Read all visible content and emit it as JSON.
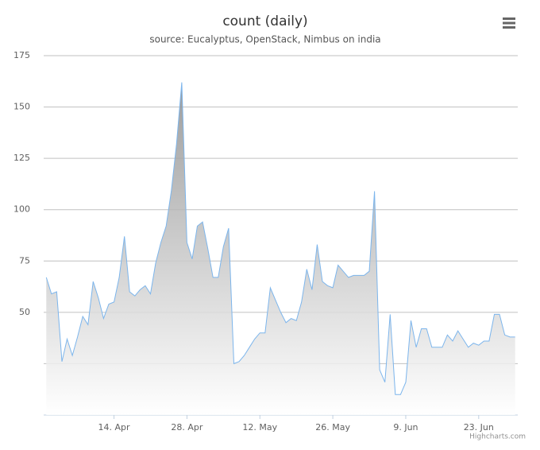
{
  "chart_data": {
    "type": "area",
    "title": "count (daily)",
    "subtitle": "source: Eucalyptus, OpenStack, Nimbus on india",
    "credits": "Highcharts.com",
    "categories": [
      null,
      null,
      null,
      null,
      null,
      null,
      null,
      null,
      null,
      null,
      null,
      null,
      null,
      "14. Apr",
      null,
      null,
      null,
      null,
      null,
      null,
      null,
      null,
      null,
      null,
      null,
      null,
      null,
      "28. Apr",
      null,
      null,
      null,
      null,
      null,
      null,
      null,
      null,
      null,
      null,
      null,
      null,
      null,
      "12. May",
      null,
      null,
      null,
      null,
      null,
      null,
      null,
      null,
      null,
      null,
      null,
      null,
      null,
      "26. May",
      null,
      null,
      null,
      null,
      null,
      null,
      null,
      null,
      null,
      null,
      null,
      null,
      null,
      "9. Jun",
      null,
      null,
      null,
      null,
      null,
      null,
      null,
      null,
      null,
      null,
      null,
      null,
      null,
      "23. Jun",
      null,
      null,
      null,
      null,
      null,
      null,
      null
    ],
    "values": [
      67,
      59,
      60,
      26,
      37,
      29,
      38,
      48,
      44,
      65,
      57,
      47,
      54,
      55,
      67,
      87,
      60,
      58,
      61,
      63,
      59,
      74,
      84,
      92,
      109,
      132,
      162,
      84,
      76,
      92,
      94,
      81,
      67,
      67,
      82,
      91,
      25,
      26,
      29,
      33,
      37,
      40,
      40,
      62,
      56,
      50,
      45,
      47,
      46,
      55,
      71,
      61,
      83,
      65,
      63,
      62,
      73,
      70,
      67,
      68,
      68,
      68,
      70,
      109,
      22,
      16,
      49,
      10,
      10,
      16,
      46,
      33,
      42,
      42,
      33,
      33,
      33,
      39,
      36,
      41,
      37,
      33,
      35,
      34,
      36,
      36,
      49,
      49,
      39,
      38,
      38
    ],
    "color": "#7cb5ec",
    "ylim": [
      0,
      175
    ],
    "yticks": [
      50,
      75,
      100,
      125,
      150,
      175
    ],
    "unlabeled_grid_lines": [
      25
    ],
    "grid": true
  }
}
